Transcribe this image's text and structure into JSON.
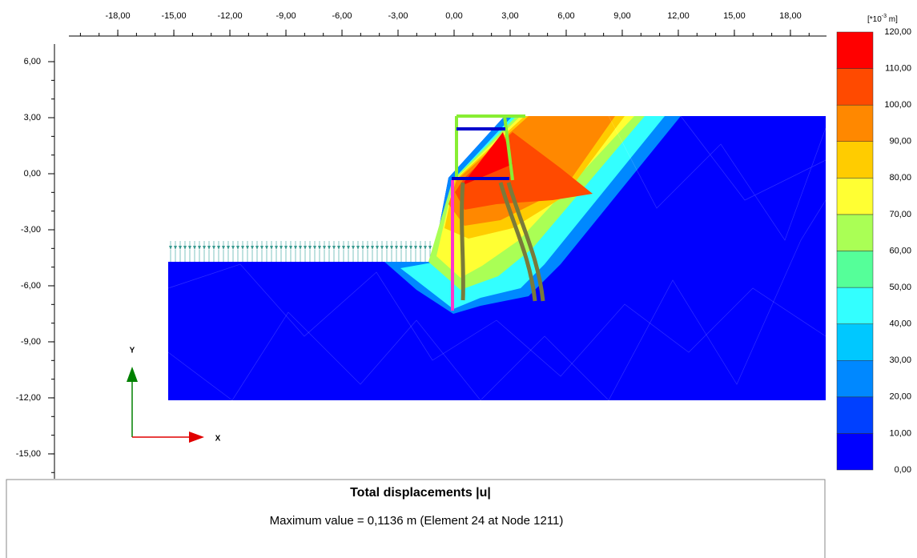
{
  "x_axis": {
    "ticks": [
      {
        "value": -18,
        "label": "-18,00"
      },
      {
        "value": -15,
        "label": "-15,00"
      },
      {
        "value": -12,
        "label": "-12,00"
      },
      {
        "value": -9,
        "label": "-9,00"
      },
      {
        "value": -6,
        "label": "-6,00"
      },
      {
        "value": -3,
        "label": "-3,00"
      },
      {
        "value": 0,
        "label": "0,00"
      },
      {
        "value": 3,
        "label": "3,00"
      },
      {
        "value": 6,
        "label": "6,00"
      },
      {
        "value": 9,
        "label": "9,00"
      },
      {
        "value": 12,
        "label": "12,00"
      },
      {
        "value": 15,
        "label": "15,00"
      },
      {
        "value": 18,
        "label": "18,00"
      }
    ]
  },
  "y_axis": {
    "ticks": [
      {
        "value": 6,
        "label": "6,00"
      },
      {
        "value": 3,
        "label": "3,00"
      },
      {
        "value": 0,
        "label": "0,00"
      },
      {
        "value": -3,
        "label": "-3,00"
      },
      {
        "value": -6,
        "label": "-6,00"
      },
      {
        "value": -9,
        "label": "-9,00"
      },
      {
        "value": -12,
        "label": "-12,00"
      },
      {
        "value": -15,
        "label": "-15,00"
      }
    ]
  },
  "legend": {
    "unit_prefix": "[*10",
    "unit_exponent": "-3",
    "unit_suffix": " m]",
    "levels": [
      {
        "value": 0,
        "label": "0,00"
      },
      {
        "value": 10,
        "label": "10,00"
      },
      {
        "value": 20,
        "label": "20,00"
      },
      {
        "value": 30,
        "label": "30,00"
      },
      {
        "value": 40,
        "label": "40,00"
      },
      {
        "value": 50,
        "label": "50,00"
      },
      {
        "value": 60,
        "label": "60,00"
      },
      {
        "value": 70,
        "label": "70,00"
      },
      {
        "value": 80,
        "label": "80,00"
      },
      {
        "value": 90,
        "label": "90,00"
      },
      {
        "value": 100,
        "label": "100,00"
      },
      {
        "value": 110,
        "label": "110,00"
      },
      {
        "value": 120,
        "label": "120,00"
      }
    ],
    "colors": [
      "#0000ff",
      "#0040ff",
      "#0088ff",
      "#00c8ff",
      "#33ffff",
      "#55ff99",
      "#aaff55",
      "#ffff33",
      "#ffcc00",
      "#ff8800",
      "#ff4a00",
      "#ff0000"
    ]
  },
  "axes_indicator": {
    "x": "X",
    "y": "Y"
  },
  "info": {
    "title": "Total displacements |u|",
    "subtitle": "Maximum value = 0,1136 m (Element 24 at Node 1211)"
  }
}
